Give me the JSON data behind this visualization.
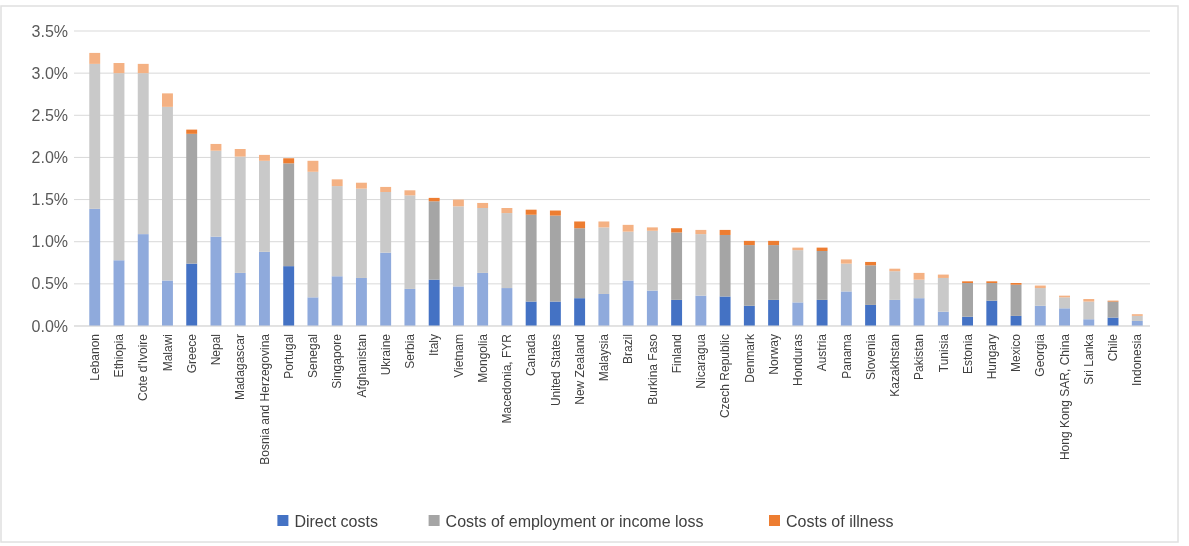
{
  "chart_data": {
    "type": "bar",
    "stacked": true,
    "legend": "bottom",
    "grid": "y",
    "categories": [
      "Lebanon",
      "Ethiopia",
      "Cote d'Ivoire",
      "Malawi",
      "Greece",
      "Nepal",
      "Madagascar",
      "Bosnia and Herzegovina",
      "Portugal",
      "Senegal",
      "Singapore",
      "Afghanistan",
      "Ukraine",
      "Serbia",
      "Italy",
      "Vietnam",
      "Mongolia",
      "Macedonia, FYR",
      "Canada",
      "United States",
      "New Zealand",
      "Malaysia",
      "Brazil",
      "Burkina Faso",
      "Finland",
      "Nicaragua",
      "Czech Republic",
      "Denmark",
      "Norway",
      "Honduras",
      "Austria",
      "Panama",
      "Slovenia",
      "Kazakhstan",
      "Pakistan",
      "Tunisia",
      "Estonia",
      "Hungary",
      "Mexico",
      "Georgia",
      "Hong Kong SAR, China",
      "Sri Lanka",
      "Chile",
      "Indonesia"
    ],
    "ylim": [
      0,
      3.5
    ],
    "yticks": [
      {
        "value": 0,
        "label": "0.0%"
      },
      {
        "value": 0.5,
        "label": "0.5%"
      },
      {
        "value": 1,
        "label": "1.0%"
      },
      {
        "value": 1.5,
        "label": "1.5%"
      },
      {
        "value": 2,
        "label": "2.0%"
      },
      {
        "value": 2.5,
        "label": "2.5%"
      },
      {
        "value": 3,
        "label": "3.0%"
      },
      {
        "value": 3.5,
        "label": "3.5%"
      }
    ],
    "series": [
      {
        "name": "Direct costs",
        "color": "#4472c4",
        "values": [
          1.39,
          0.78,
          1.09,
          0.54,
          0.74,
          1.06,
          0.63,
          0.88,
          0.71,
          0.34,
          0.59,
          0.57,
          0.87,
          0.44,
          0.55,
          0.47,
          0.63,
          0.45,
          0.29,
          0.29,
          0.33,
          0.38,
          0.54,
          0.42,
          0.31,
          0.36,
          0.35,
          0.24,
          0.31,
          0.28,
          0.31,
          0.41,
          0.25,
          0.31,
          0.33,
          0.17,
          0.11,
          0.3,
          0.12,
          0.24,
          0.21,
          0.08,
          0.1,
          0.06
        ],
        "colors": [
          "#8faadc",
          "#8faadc",
          "#8faadc",
          "#8faadc",
          "#4472c4",
          "#8faadc",
          "#8faadc",
          "#8faadc",
          "#4472c4",
          "#8faadc",
          "#8faadc",
          "#8faadc",
          "#8faadc",
          "#8faadc",
          "#4472c4",
          "#8faadc",
          "#8faadc",
          "#8faadc",
          "#4472c4",
          "#4472c4",
          "#4472c4",
          "#8faadc",
          "#8faadc",
          "#8faadc",
          "#4472c4",
          "#8faadc",
          "#4472c4",
          "#4472c4",
          "#4472c4",
          "#8faadc",
          "#4472c4",
          "#8faadc",
          "#4472c4",
          "#8faadc",
          "#8faadc",
          "#8faadc",
          "#4472c4",
          "#4472c4",
          "#4472c4",
          "#8faadc",
          "#8faadc",
          "#8faadc",
          "#4472c4",
          "#8faadc"
        ]
      },
      {
        "name": "Costs of employment or income loss",
        "color": "#a5a5a5",
        "values": [
          1.72,
          2.22,
          1.91,
          2.06,
          1.54,
          1.02,
          1.38,
          1.08,
          1.22,
          1.49,
          1.07,
          1.06,
          0.72,
          1.11,
          0.93,
          0.95,
          0.77,
          0.89,
          1.03,
          1.02,
          0.83,
          0.79,
          0.58,
          0.71,
          0.8,
          0.73,
          0.73,
          0.72,
          0.65,
          0.62,
          0.58,
          0.33,
          0.47,
          0.34,
          0.22,
          0.4,
          0.4,
          0.21,
          0.37,
          0.21,
          0.13,
          0.21,
          0.19,
          0.06
        ],
        "colors": [
          "#c9c9c9",
          "#c9c9c9",
          "#c9c9c9",
          "#c9c9c9",
          "#a5a5a5",
          "#c9c9c9",
          "#c9c9c9",
          "#c9c9c9",
          "#a5a5a5",
          "#c9c9c9",
          "#c9c9c9",
          "#c9c9c9",
          "#c9c9c9",
          "#c9c9c9",
          "#a5a5a5",
          "#c9c9c9",
          "#c9c9c9",
          "#c9c9c9",
          "#a5a5a5",
          "#a5a5a5",
          "#a5a5a5",
          "#c9c9c9",
          "#c9c9c9",
          "#c9c9c9",
          "#a5a5a5",
          "#c9c9c9",
          "#a5a5a5",
          "#a5a5a5",
          "#a5a5a5",
          "#c9c9c9",
          "#a5a5a5",
          "#c9c9c9",
          "#a5a5a5",
          "#c9c9c9",
          "#c9c9c9",
          "#c9c9c9",
          "#a5a5a5",
          "#a5a5a5",
          "#a5a5a5",
          "#c9c9c9",
          "#c9c9c9",
          "#c9c9c9",
          "#a5a5a5",
          "#c9c9c9"
        ]
      },
      {
        "name": "Costs of illness",
        "color": "#ed7d31",
        "values": [
          0.13,
          0.12,
          0.11,
          0.16,
          0.05,
          0.08,
          0.09,
          0.07,
          0.06,
          0.13,
          0.08,
          0.07,
          0.06,
          0.06,
          0.04,
          0.08,
          0.06,
          0.06,
          0.06,
          0.06,
          0.08,
          0.07,
          0.08,
          0.04,
          0.05,
          0.05,
          0.06,
          0.05,
          0.05,
          0.03,
          0.04,
          0.05,
          0.04,
          0.03,
          0.08,
          0.04,
          0.02,
          0.02,
          0.02,
          0.03,
          0.02,
          0.03,
          0.01,
          0.02
        ],
        "colors": [
          "#f4b183",
          "#f4b183",
          "#f4b183",
          "#f4b183",
          "#ed7d31",
          "#f4b183",
          "#f4b183",
          "#f4b183",
          "#ed7d31",
          "#f4b183",
          "#f4b183",
          "#f4b183",
          "#f4b183",
          "#f4b183",
          "#ed7d31",
          "#f4b183",
          "#f4b183",
          "#f4b183",
          "#ed7d31",
          "#ed7d31",
          "#ed7d31",
          "#f4b183",
          "#f4b183",
          "#f4b183",
          "#ed7d31",
          "#f4b183",
          "#ed7d31",
          "#ed7d31",
          "#ed7d31",
          "#f4b183",
          "#ed7d31",
          "#f4b183",
          "#ed7d31",
          "#f4b183",
          "#f4b183",
          "#f4b183",
          "#ed7d31",
          "#ed7d31",
          "#ed7d31",
          "#f4b183",
          "#f4b183",
          "#f4b183",
          "#ed7d31",
          "#f4b183"
        ]
      }
    ]
  }
}
